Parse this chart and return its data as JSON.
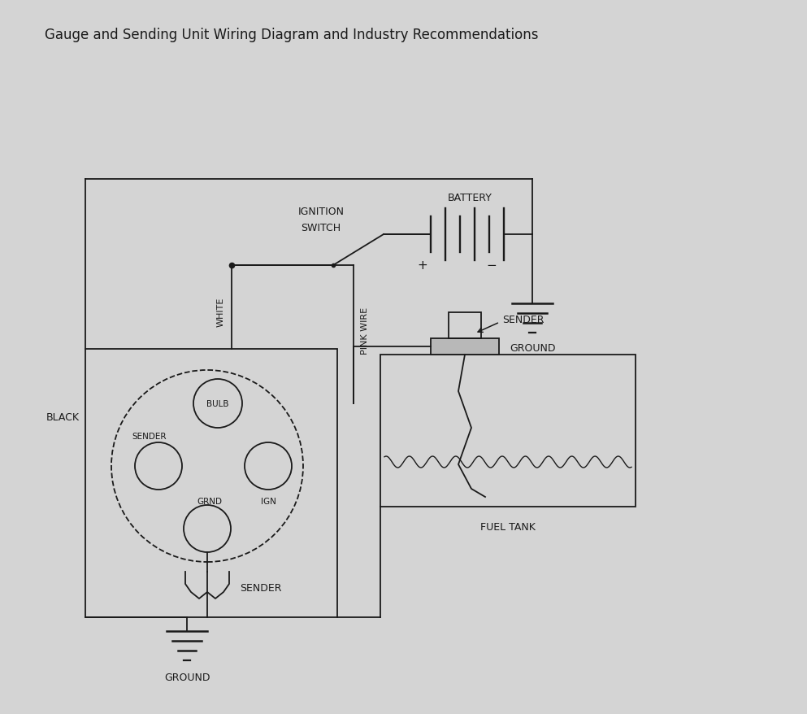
{
  "title": "Gauge and Sending Unit Wiring Diagram and Industry Recommendations",
  "title_fontsize": 12,
  "bg_color": "#d4d4d4",
  "line_color": "#1a1a1a",
  "text_color": "#1a1a1a",
  "fig_width": 9.93,
  "fig_height": 8.79,
  "xlim": [
    0,
    9.93
  ],
  "ylim": [
    0,
    8.79
  ]
}
